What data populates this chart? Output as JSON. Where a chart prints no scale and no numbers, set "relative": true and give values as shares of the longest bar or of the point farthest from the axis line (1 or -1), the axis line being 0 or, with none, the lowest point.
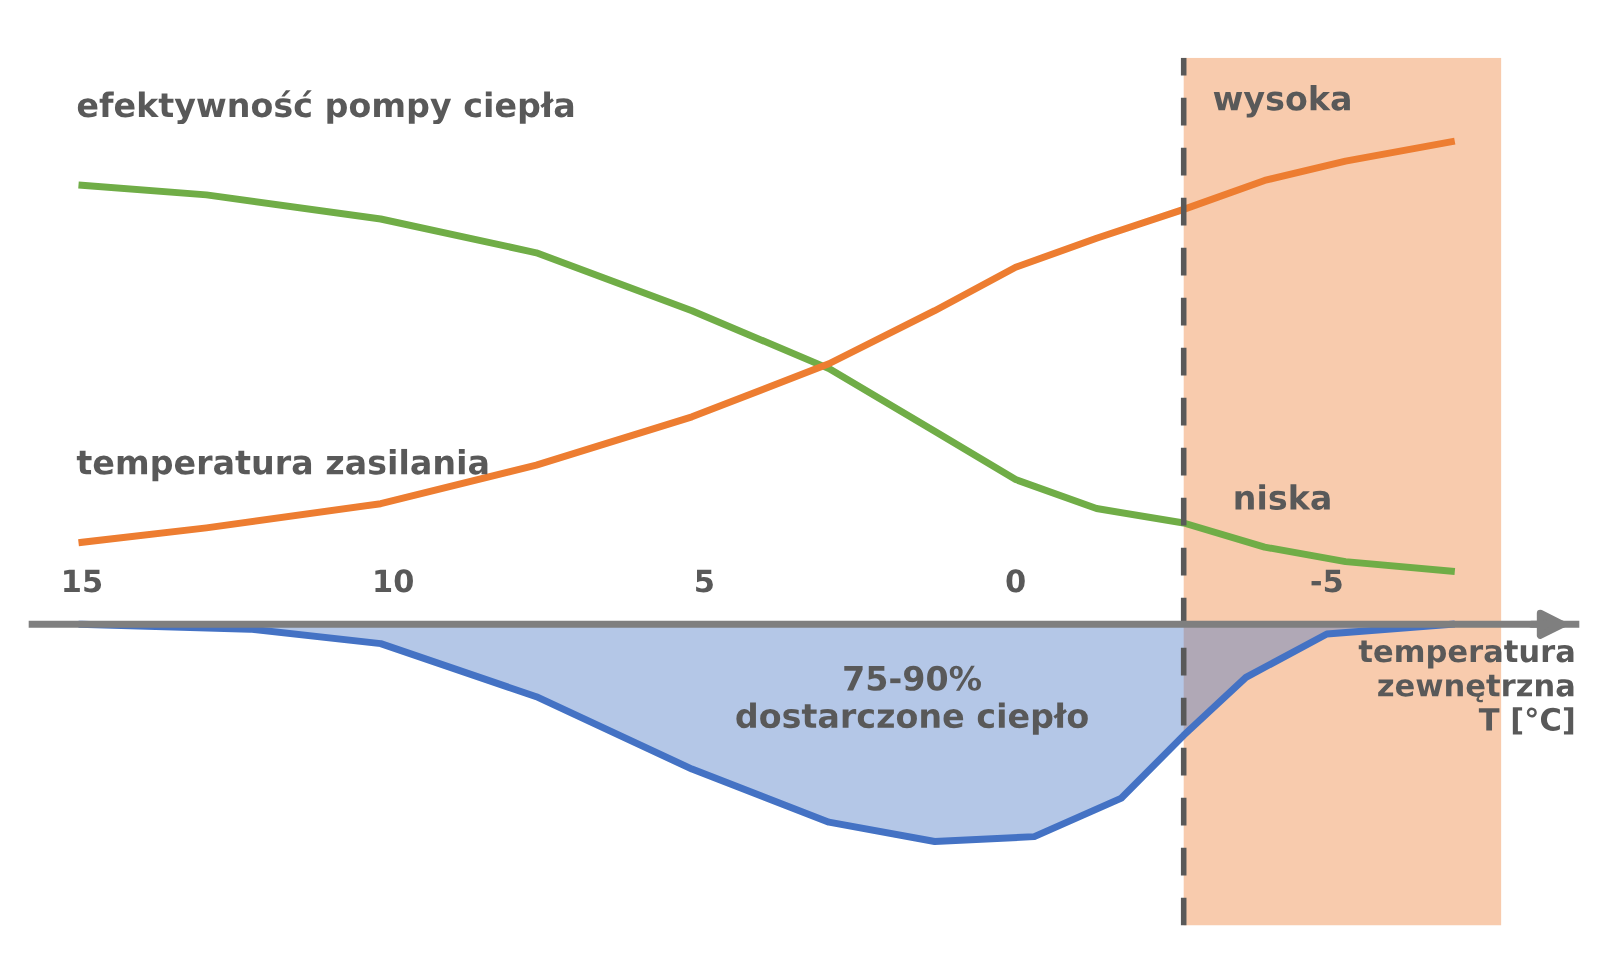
{
  "chart_data": {
    "type": "line",
    "relative": true,
    "xlabel": "temperatura\nzewnętrzna\nT [°C]",
    "xlim": [
      15.8,
      -9
    ],
    "xticks": [
      15,
      10,
      5,
      0,
      -5
    ],
    "grid": false,
    "legend": false,
    "tick_labels": "x",
    "series": [
      {
        "name": "efektywność pompy ciepła",
        "color": "#70ad47",
        "x": [
          15,
          13,
          10.2,
          7.7,
          5.2,
          3,
          1.3,
          0,
          -1.3,
          -2.7,
          -4,
          -5.3,
          -7
        ],
        "values": [
          0.91,
          0.89,
          0.84,
          0.77,
          0.65,
          0.53,
          0.4,
          0.3,
          0.24,
          0.21,
          0.16,
          0.13,
          0.11
        ]
      },
      {
        "name": "temperatura zasilania",
        "color": "#ed7d31",
        "x": [
          15,
          13,
          10.2,
          7.7,
          5.2,
          3,
          1.3,
          0,
          -1.3,
          -2.7,
          -4,
          -5.3,
          -7
        ],
        "values": [
          0.17,
          0.2,
          0.25,
          0.33,
          0.43,
          0.54,
          0.65,
          0.74,
          0.8,
          0.86,
          0.92,
          0.96,
          1.0
        ]
      },
      {
        "type": "area",
        "color": "#4472c4",
        "x": [
          15,
          12.3,
          10.2,
          7.7,
          5.2,
          3,
          1.3,
          -0.3,
          -1.7,
          -2.7,
          -3.7,
          -5,
          -7
        ],
        "values": [
          0,
          -0.01,
          -0.04,
          -0.15,
          -0.3,
          -0.41,
          -0.45,
          -0.44,
          -0.36,
          -0.23,
          -0.11,
          -0.02,
          0
        ]
      }
    ],
    "bands": [
      {
        "axis": "x",
        "from": -2.7,
        "to": -7.8,
        "color": "#f8cbad"
      }
    ],
    "ref_lines": [
      {
        "axis": "x",
        "value": -2.7,
        "color": "#595959",
        "line_style": "dashed"
      }
    ],
    "annotations": [
      "wysoka",
      "niska",
      "75-90%\ndostarczone ciepło"
    ]
  }
}
